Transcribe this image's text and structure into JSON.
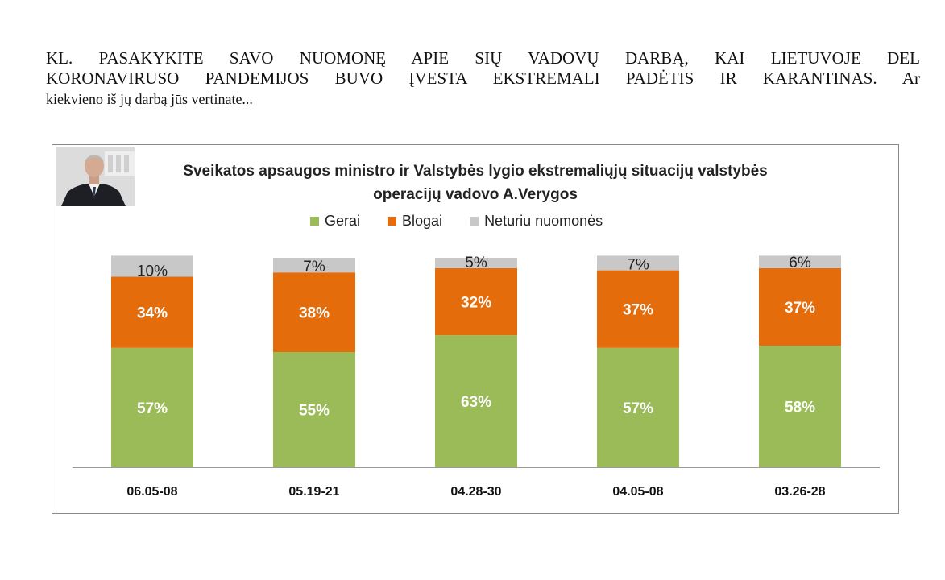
{
  "question": {
    "line1": "KL. PASAKYKITE SAVO NUOMONĘ APIE SIŲ VADOVŲ DARBĄ, KAI LIETUVOJE DEL",
    "line2": "KORONAVIRUSO PANDEMIJOS BUVO ĮVESTA EKSTREMALI PADĖTIS IR KARANTINAS.  Ar",
    "line3": "kiekvieno iš jų darbą jūs vertinate..."
  },
  "chart_data": {
    "type": "bar",
    "stacked": true,
    "title": "Sveikatos apsaugos ministro ir Valstybės lygio ekstremaliųjų situacijų valstybės operacijų vadovo A.Verygos",
    "title_line1": "Sveikatos apsaugos ministro ir Valstybės lygio ekstremaliųjų situacijų valstybės",
    "title_line2": "operacijų vadovo A.Verygos",
    "categories": [
      "06.05-08",
      "05.19-21",
      "04.28-30",
      "04.05-08",
      "03.26-28"
    ],
    "series": [
      {
        "name": "Gerai",
        "color": "#9BBB59",
        "values": [
          57,
          55,
          63,
          57,
          58
        ],
        "labels": [
          "57%",
          "55%",
          "63%",
          "57%",
          "58%"
        ]
      },
      {
        "name": "Blogai",
        "color": "#E46C0A",
        "values": [
          34,
          38,
          32,
          37,
          37
        ],
        "labels": [
          "34%",
          "38%",
          "32%",
          "37%",
          "37%"
        ]
      },
      {
        "name": "Neturiu nuomonės",
        "color": "#C8C8C8",
        "values": [
          10,
          7,
          5,
          7,
          6
        ],
        "labels": [
          "10%",
          "7%",
          "5%",
          "7%",
          "6%"
        ]
      }
    ],
    "ylim": [
      0,
      100
    ],
    "legend_position": "top",
    "grid": false,
    "xlabel": "",
    "ylabel": ""
  }
}
